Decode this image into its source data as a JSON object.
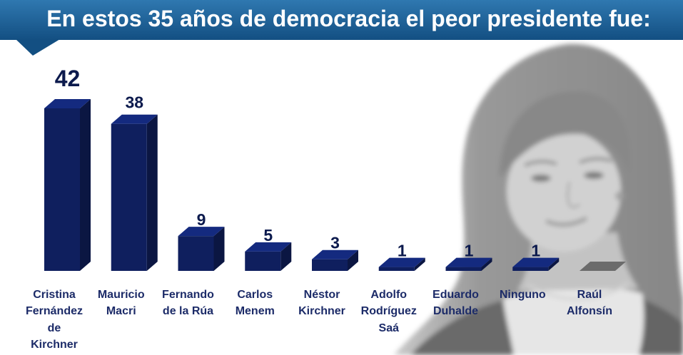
{
  "theme": {
    "banner_top": "#2f78b0",
    "banner_bottom": "#134f82",
    "title_color": "#ffffff",
    "bar_color": "#0f1f5e",
    "muted_bar_color": "#4f4f4f",
    "value_label_color": "#0c1a4d",
    "category_label_color": "#1c2b68"
  },
  "chart_data": {
    "type": "bar",
    "title": "En estos 35 años de democracia el peor presidente fue:",
    "categories": [
      "Cristina\nFernández\nde\nKirchner",
      "Mauricio\nMacri",
      "Fernando\nde la Rúa",
      "Carlos\nMenem",
      "Néstor\nKirchner",
      "Adolfo\nRodríguez\nSaá",
      "Eduardo\nDuhalde",
      "Ninguno",
      "Raúl\nAlfonsín"
    ],
    "values": [
      42,
      38,
      9,
      5,
      3,
      1,
      1,
      1,
      0
    ],
    "xlabel": "",
    "ylabel": "",
    "ylim": [
      0,
      42
    ],
    "grid": false,
    "legend": "none"
  }
}
